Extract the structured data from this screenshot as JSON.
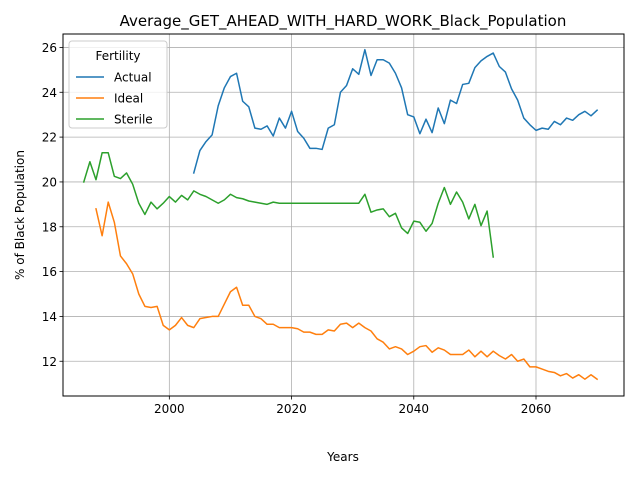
{
  "chart_data": {
    "type": "line",
    "title": "Average_GET_AHEAD_WITH_HARD_WORK_Black_Population",
    "xlabel": "Years",
    "ylabel": "% of Black Population",
    "xlim": [
      1982.6,
      2074.4
    ],
    "ylim": [
      10.45,
      26.6
    ],
    "xticks": [
      2000,
      2020,
      2040,
      2060
    ],
    "yticks": [
      12,
      14,
      16,
      18,
      20,
      22,
      24,
      26
    ],
    "grid": true,
    "legend": {
      "title": "Fertility",
      "position": "top-left"
    },
    "series": [
      {
        "name": "Actual",
        "color": "#1f77b4",
        "x": [
          2004,
          2005,
          2006,
          2007,
          2008,
          2009,
          2010,
          2011,
          2012,
          2013,
          2014,
          2015,
          2016,
          2017,
          2018,
          2019,
          2020,
          2021,
          2022,
          2023,
          2024,
          2025,
          2026,
          2027,
          2028,
          2029,
          2030,
          2031,
          2032,
          2033,
          2034,
          2035,
          2036,
          2037,
          2038,
          2039,
          2040,
          2041,
          2042,
          2043,
          2044,
          2045,
          2046,
          2047,
          2048,
          2049,
          2050,
          2051,
          2052,
          2053,
          2054,
          2055,
          2056,
          2057,
          2058,
          2059,
          2060,
          2061,
          2062,
          2063,
          2064,
          2065,
          2066,
          2067,
          2068,
          2069,
          2070
        ],
        "y": [
          20.4,
          21.4,
          21.8,
          22.1,
          23.4,
          24.2,
          24.7,
          24.85,
          23.6,
          23.35,
          22.4,
          22.35,
          22.5,
          22.05,
          22.85,
          22.4,
          23.15,
          22.25,
          21.95,
          21.5,
          21.5,
          21.45,
          22.4,
          22.55,
          24.0,
          24.3,
          25.05,
          24.8,
          25.9,
          24.75,
          25.45,
          25.45,
          25.3,
          24.85,
          24.2,
          23.0,
          22.9,
          22.15,
          22.8,
          22.2,
          23.3,
          22.6,
          23.65,
          23.5,
          24.35,
          24.4,
          25.1,
          25.4,
          25.6,
          25.75,
          25.15,
          24.9,
          24.15,
          23.65,
          22.85,
          22.55,
          22.3,
          22.4,
          22.35,
          22.7,
          22.55,
          22.85,
          22.75,
          23.0,
          23.15,
          22.95,
          23.2
        ]
      },
      {
        "name": "Ideal",
        "color": "#ff7f0e",
        "x": [
          1988,
          1989,
          1990,
          1991,
          1992,
          1993,
          1994,
          1995,
          1996,
          1997,
          1998,
          1999,
          2000,
          2001,
          2002,
          2003,
          2004,
          2005,
          2006,
          2007,
          2008,
          2009,
          2010,
          2011,
          2012,
          2013,
          2014,
          2015,
          2016,
          2017,
          2018,
          2019,
          2020,
          2021,
          2022,
          2023,
          2024,
          2025,
          2026,
          2027,
          2028,
          2029,
          2030,
          2031,
          2032,
          2033,
          2034,
          2035,
          2036,
          2037,
          2038,
          2039,
          2040,
          2041,
          2042,
          2043,
          2044,
          2045,
          2046,
          2047,
          2048,
          2049,
          2050,
          2051,
          2052,
          2053,
          2054,
          2055,
          2056,
          2057,
          2058,
          2059,
          2060,
          2061,
          2062,
          2063,
          2064,
          2065,
          2066,
          2067,
          2068,
          2069,
          2070
        ],
        "y": [
          18.8,
          17.6,
          19.1,
          18.2,
          16.7,
          16.35,
          15.9,
          15.0,
          14.45,
          14.4,
          14.45,
          13.6,
          13.4,
          13.6,
          13.95,
          13.6,
          13.5,
          13.9,
          13.95,
          14.0,
          14.0,
          14.55,
          15.1,
          15.3,
          14.5,
          14.5,
          14.0,
          13.9,
          13.65,
          13.65,
          13.5,
          13.5,
          13.5,
          13.45,
          13.3,
          13.3,
          13.2,
          13.2,
          13.4,
          13.35,
          13.65,
          13.7,
          13.5,
          13.7,
          13.5,
          13.35,
          13.0,
          12.85,
          12.55,
          12.65,
          12.55,
          12.3,
          12.45,
          12.65,
          12.7,
          12.4,
          12.6,
          12.5,
          12.3,
          12.3,
          12.3,
          12.5,
          12.2,
          12.45,
          12.2,
          12.45,
          12.25,
          12.1,
          12.3,
          12.0,
          12.1,
          11.75,
          11.75,
          11.65,
          11.55,
          11.5,
          11.35,
          11.45,
          11.25,
          11.4,
          11.2,
          11.4,
          11.2
        ]
      },
      {
        "name": "Sterile",
        "color": "#2ca02c",
        "x": [
          1986,
          1987,
          1988,
          1989,
          1990,
          1991,
          1992,
          1993,
          1994,
          1995,
          1996,
          1997,
          1998,
          1999,
          2000,
          2001,
          2002,
          2003,
          2004,
          2005,
          2006,
          2007,
          2008,
          2009,
          2010,
          2011,
          2012,
          2013,
          2014,
          2015,
          2016,
          2017,
          2018,
          2019,
          2020,
          2021,
          2022,
          2023,
          2024,
          2025,
          2026,
          2027,
          2028,
          2029,
          2030,
          2031,
          2032,
          2033,
          2034,
          2035,
          2036,
          2037,
          2038,
          2039,
          2040,
          2041,
          2042,
          2043,
          2044,
          2045,
          2046,
          2047,
          2048,
          2049,
          2050,
          2051,
          2052,
          2053
        ],
        "y": [
          20.0,
          20.9,
          20.1,
          21.3,
          21.3,
          20.25,
          20.15,
          20.4,
          19.9,
          19.05,
          18.55,
          19.1,
          18.8,
          19.05,
          19.35,
          19.1,
          19.4,
          19.2,
          19.6,
          19.45,
          19.35,
          19.2,
          19.05,
          19.2,
          19.45,
          19.3,
          19.25,
          19.15,
          19.1,
          19.05,
          19.0,
          19.1,
          19.05,
          19.05,
          19.05,
          19.05,
          19.05,
          19.05,
          19.05,
          19.05,
          19.05,
          19.05,
          19.05,
          19.05,
          19.05,
          19.05,
          19.45,
          18.65,
          18.75,
          18.8,
          18.45,
          18.6,
          17.95,
          17.7,
          18.25,
          18.2,
          17.8,
          18.15,
          19.05,
          19.75,
          19.0,
          19.55,
          19.1,
          18.35,
          19.0,
          18.05,
          18.7,
          16.65
        ]
      }
    ]
  }
}
